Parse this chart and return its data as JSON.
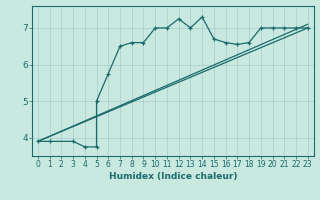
{
  "xlabel": "Humidex (Indice chaleur)",
  "ylabel": "",
  "bg_color": "#c8e8e0",
  "line_color": "#1a6b6b",
  "grid_color": "#a8cccc",
  "xlim": [
    -0.5,
    23.5
  ],
  "ylim": [
    3.5,
    7.6
  ],
  "yticks": [
    4,
    5,
    6,
    7
  ],
  "xticks": [
    0,
    1,
    2,
    3,
    4,
    5,
    6,
    7,
    8,
    9,
    10,
    11,
    12,
    13,
    14,
    15,
    16,
    17,
    18,
    19,
    20,
    21,
    22,
    23
  ],
  "series1_x": [
    0,
    1,
    3,
    4,
    5,
    5,
    6,
    7,
    8,
    9,
    10,
    11,
    12,
    13,
    14,
    15,
    16,
    17,
    18,
    19,
    20,
    21,
    22,
    23
  ],
  "series1_y": [
    3.9,
    3.9,
    3.9,
    3.75,
    3.75,
    5.0,
    5.75,
    6.5,
    6.6,
    6.6,
    7.0,
    7.0,
    7.25,
    7.0,
    7.3,
    6.7,
    6.6,
    6.55,
    6.6,
    7.0,
    7.0,
    7.0,
    7.0,
    7.0
  ],
  "series2_x": [
    0,
    23
  ],
  "series2_y": [
    3.9,
    7.1
  ],
  "series3_x": [
    0,
    23
  ],
  "series3_y": [
    3.9,
    7.0
  ]
}
